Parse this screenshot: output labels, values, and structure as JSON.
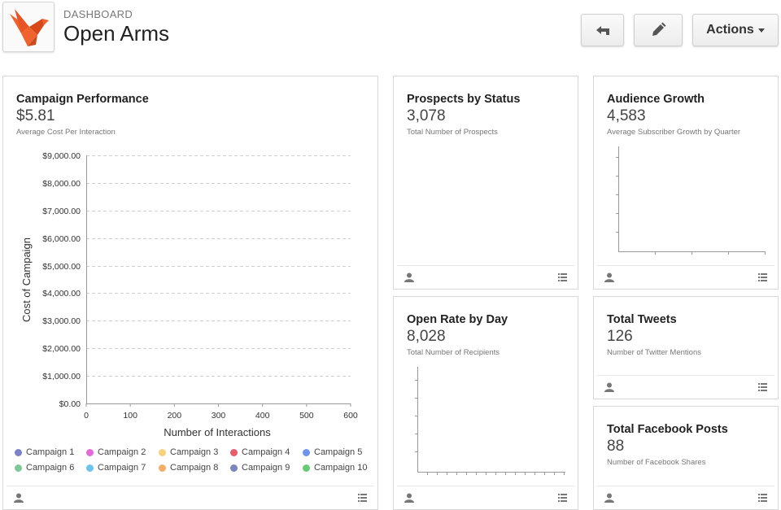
{
  "header": {
    "breadcrumb": "DASHBOARD",
    "title": "Open Arms",
    "actions_label": "Actions"
  },
  "colors": {
    "logo_orange": "#f0622e",
    "logo_orange_dark": "#c94a1c",
    "grid": "#cfcfcf",
    "axis": "#999999"
  },
  "cards": {
    "campaign": {
      "title": "Campaign Performance",
      "value": "$5.81",
      "subtitle": "Average Cost Per Interaction"
    },
    "prospects": {
      "title": "Prospects by Status",
      "value": "3,078",
      "subtitle": "Total Number of Prospects"
    },
    "audience": {
      "title": "Audience Growth",
      "value": "4,583",
      "subtitle": "Average Subscriber Growth by Quarter"
    },
    "openrate": {
      "title": "Open Rate by Day",
      "value": "8,028",
      "subtitle": "Total Number of Recipients"
    },
    "tweets": {
      "title": "Total Tweets",
      "value": "126",
      "subtitle": "Number of Twitter Mentions"
    },
    "facebook": {
      "title": "Total Facebook Posts",
      "value": "88",
      "subtitle": "Number of Facebook Shares"
    }
  },
  "chart_data": {
    "type": "scatter",
    "title": "",
    "xlabel": "Number of Interactions",
    "ylabel": "Cost of Campaign",
    "xlim": [
      0,
      600
    ],
    "ylim": [
      0,
      9000
    ],
    "x_ticks": [
      "0",
      "100",
      "200",
      "300",
      "400",
      "500",
      "600"
    ],
    "y_ticks": [
      "$0.00",
      "$1,000.00",
      "$2,000.00",
      "$3,000.00",
      "$4,000.00",
      "$5,000.00",
      "$6,000.00",
      "$7,000.00",
      "$8,000.00",
      "$9,000.00"
    ],
    "grid": true,
    "legend_position": "bottom",
    "series": [
      {
        "name": "Campaign 1",
        "color": "#7b82c9",
        "values": []
      },
      {
        "name": "Campaign 2",
        "color": "#e36ad9",
        "values": []
      },
      {
        "name": "Campaign 3",
        "color": "#f6d27a",
        "values": []
      },
      {
        "name": "Campaign 4",
        "color": "#ea5b6e",
        "values": []
      },
      {
        "name": "Campaign 5",
        "color": "#6d95ee",
        "values": []
      },
      {
        "name": "Campaign 6",
        "color": "#80c997",
        "values": []
      },
      {
        "name": "Campaign 7",
        "color": "#6cc4ec",
        "values": []
      },
      {
        "name": "Campaign 8",
        "color": "#f4ad67",
        "values": []
      },
      {
        "name": "Campaign 9",
        "color": "#7a86bd",
        "values": []
      },
      {
        "name": "Campaign 10",
        "color": "#66cc72",
        "values": []
      }
    ]
  }
}
